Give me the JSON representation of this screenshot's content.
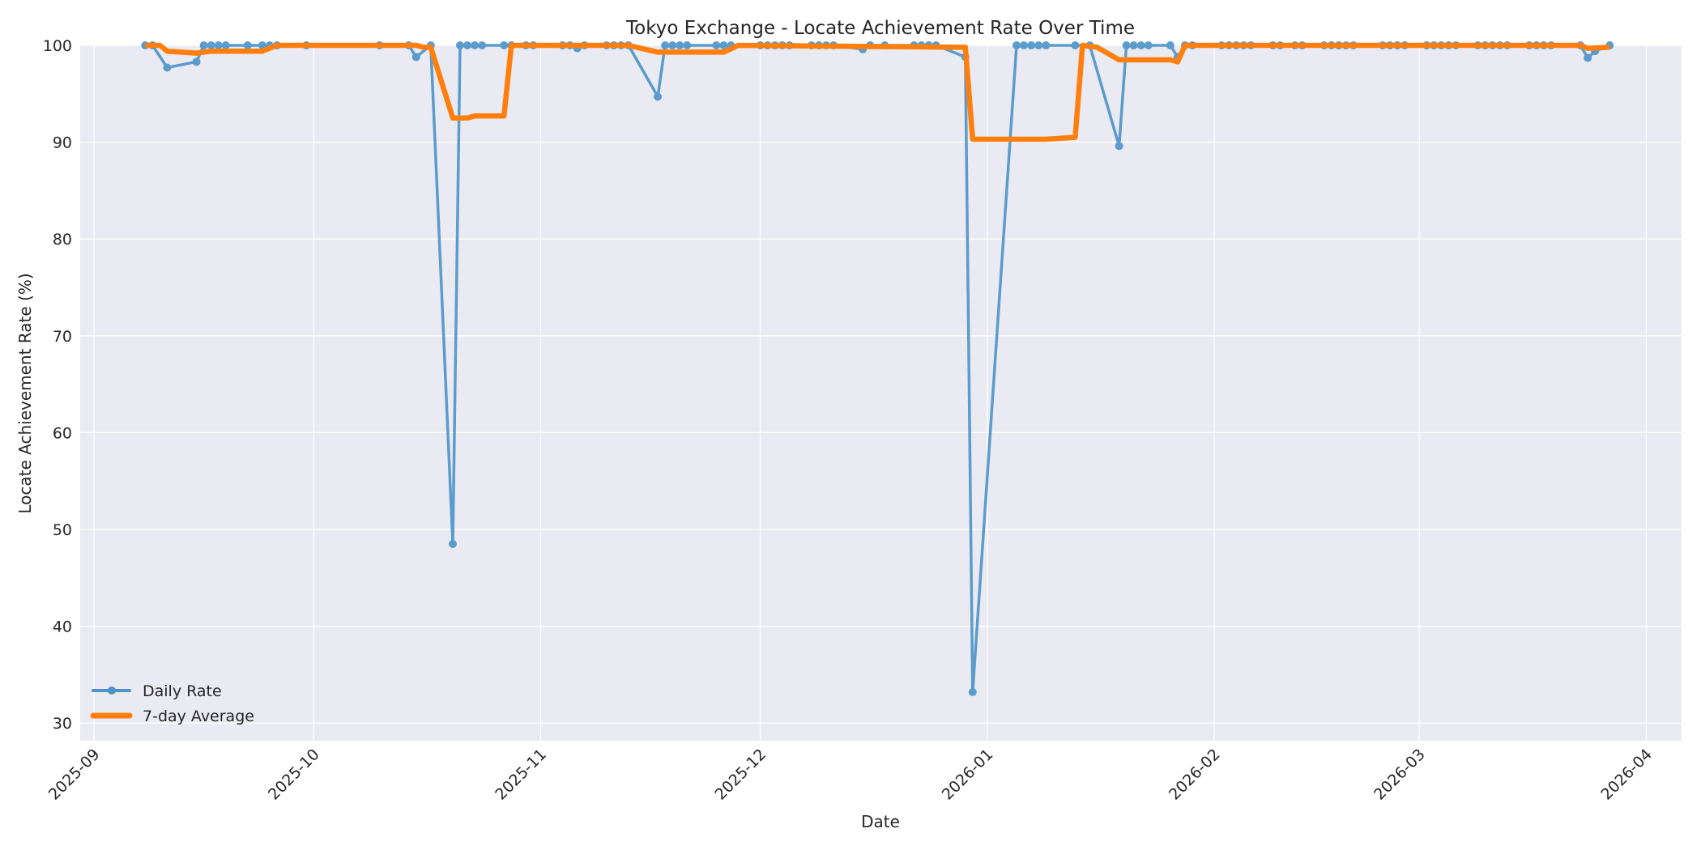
{
  "chart_data": {
    "type": "line",
    "title": "Tokyo Exchange - Locate Achievement Rate Over Time",
    "xlabel": "Date",
    "ylabel": "Locate Achievement Rate (%)",
    "ylim": [
      28.1,
      100
    ],
    "xlim": [
      "2025-08-29",
      "2026-04-05"
    ],
    "grid": true,
    "legend_position": "lower left",
    "x_ticks": [
      "2025-09",
      "2025-10",
      "2025-11",
      "2025-12",
      "2026-01",
      "2026-02",
      "2026-03",
      "2026-04"
    ],
    "y_ticks": [
      30,
      40,
      50,
      60,
      70,
      80,
      90,
      100
    ],
    "series": [
      {
        "name": "Daily Rate",
        "color": "#4c93c8",
        "style": "line+markers",
        "points": [
          [
            "2025-09-08",
            100
          ],
          [
            "2025-09-09",
            100
          ],
          [
            "2025-09-11",
            97.7
          ],
          [
            "2025-09-15",
            98.3
          ],
          [
            "2025-09-16",
            100
          ],
          [
            "2025-09-17",
            100
          ],
          [
            "2025-09-18",
            100
          ],
          [
            "2025-09-19",
            100
          ],
          [
            "2025-09-22",
            100
          ],
          [
            "2025-09-24",
            100
          ],
          [
            "2025-09-25",
            100
          ],
          [
            "2025-09-26",
            100
          ],
          [
            "2025-09-30",
            100
          ],
          [
            "2025-10-10",
            100
          ],
          [
            "2025-10-14",
            100
          ],
          [
            "2025-10-15",
            98.8
          ],
          [
            "2025-10-17",
            100
          ],
          [
            "2025-10-20",
            48.5
          ],
          [
            "2025-10-21",
            100
          ],
          [
            "2025-10-22",
            100
          ],
          [
            "2025-10-23",
            100
          ],
          [
            "2025-10-24",
            100
          ],
          [
            "2025-10-27",
            100
          ],
          [
            "2025-10-28",
            100
          ],
          [
            "2025-10-30",
            100
          ],
          [
            "2025-10-31",
            100
          ],
          [
            "2025-11-04",
            100
          ],
          [
            "2025-11-05",
            100
          ],
          [
            "2025-11-06",
            99.7
          ],
          [
            "2025-11-07",
            100
          ],
          [
            "2025-11-10",
            100
          ],
          [
            "2025-11-11",
            100
          ],
          [
            "2025-11-12",
            100
          ],
          [
            "2025-11-13",
            100
          ],
          [
            "2025-11-17",
            94.7
          ],
          [
            "2025-11-18",
            100
          ],
          [
            "2025-11-19",
            100
          ],
          [
            "2025-11-20",
            100
          ],
          [
            "2025-11-21",
            100
          ],
          [
            "2025-11-25",
            100
          ],
          [
            "2025-11-26",
            100
          ],
          [
            "2025-11-27",
            100
          ],
          [
            "2025-12-01",
            100
          ],
          [
            "2025-12-02",
            100
          ],
          [
            "2025-12-03",
            100
          ],
          [
            "2025-12-04",
            100
          ],
          [
            "2025-12-05",
            100
          ],
          [
            "2025-12-08",
            100
          ],
          [
            "2025-12-09",
            100
          ],
          [
            "2025-12-10",
            100
          ],
          [
            "2025-12-11",
            100
          ],
          [
            "2025-12-15",
            99.6
          ],
          [
            "2025-12-16",
            100
          ],
          [
            "2025-12-18",
            100
          ],
          [
            "2025-12-22",
            100
          ],
          [
            "2025-12-23",
            100
          ],
          [
            "2025-12-24",
            100
          ],
          [
            "2025-12-25",
            100
          ],
          [
            "2025-12-29",
            98.8
          ],
          [
            "2025-12-30",
            33.2
          ],
          [
            "2026-01-05",
            100
          ],
          [
            "2026-01-06",
            100
          ],
          [
            "2026-01-07",
            100
          ],
          [
            "2026-01-08",
            100
          ],
          [
            "2026-01-09",
            100
          ],
          [
            "2026-01-13",
            100
          ],
          [
            "2026-01-15",
            100
          ],
          [
            "2026-01-19",
            89.6
          ],
          [
            "2026-01-20",
            100
          ],
          [
            "2026-01-21",
            100
          ],
          [
            "2026-01-22",
            100
          ],
          [
            "2026-01-23",
            100
          ],
          [
            "2026-01-26",
            100
          ],
          [
            "2026-01-27",
            98.8
          ],
          [
            "2026-01-28",
            100
          ],
          [
            "2026-01-29",
            100
          ],
          [
            "2026-02-02",
            100
          ],
          [
            "2026-02-03",
            100
          ],
          [
            "2026-02-04",
            100
          ],
          [
            "2026-02-05",
            100
          ],
          [
            "2026-02-06",
            100
          ],
          [
            "2026-02-09",
            100
          ],
          [
            "2026-02-10",
            100
          ],
          [
            "2026-02-12",
            100
          ],
          [
            "2026-02-13",
            100
          ],
          [
            "2026-02-16",
            100
          ],
          [
            "2026-02-17",
            100
          ],
          [
            "2026-02-18",
            100
          ],
          [
            "2026-02-19",
            100
          ],
          [
            "2026-02-20",
            100
          ],
          [
            "2026-02-24",
            100
          ],
          [
            "2026-02-25",
            100
          ],
          [
            "2026-02-26",
            100
          ],
          [
            "2026-02-27",
            100
          ],
          [
            "2026-03-02",
            100
          ],
          [
            "2026-03-03",
            100
          ],
          [
            "2026-03-04",
            100
          ],
          [
            "2026-03-05",
            100
          ],
          [
            "2026-03-06",
            100
          ],
          [
            "2026-03-09",
            100
          ],
          [
            "2026-03-10",
            100
          ],
          [
            "2026-03-11",
            100
          ],
          [
            "2026-03-12",
            100
          ],
          [
            "2026-03-13",
            100
          ],
          [
            "2026-03-16",
            100
          ],
          [
            "2026-03-17",
            100
          ],
          [
            "2026-03-18",
            100
          ],
          [
            "2026-03-19",
            100
          ],
          [
            "2026-03-23",
            100
          ],
          [
            "2026-03-24",
            98.7
          ],
          [
            "2026-03-25",
            99.4
          ],
          [
            "2026-03-27",
            100
          ]
        ]
      },
      {
        "name": "7-day Average",
        "color": "#ff7f0e",
        "style": "line",
        "points": [
          [
            "2025-09-08",
            100
          ],
          [
            "2025-09-10",
            100
          ],
          [
            "2025-09-11",
            99.4
          ],
          [
            "2025-09-15",
            99.2
          ],
          [
            "2025-09-17",
            99.4
          ],
          [
            "2025-09-24",
            99.4
          ],
          [
            "2025-09-26",
            100
          ],
          [
            "2025-10-15",
            100
          ],
          [
            "2025-10-16",
            99.8
          ],
          [
            "2025-10-17",
            99.8
          ],
          [
            "2025-10-20",
            92.5
          ],
          [
            "2025-10-22",
            92.5
          ],
          [
            "2025-10-23",
            92.7
          ],
          [
            "2025-10-27",
            92.7
          ],
          [
            "2025-10-28",
            100
          ],
          [
            "2025-11-13",
            100
          ],
          [
            "2025-11-17",
            99.3
          ],
          [
            "2025-11-26",
            99.3
          ],
          [
            "2025-11-28",
            100
          ],
          [
            "2025-12-28",
            99.8
          ],
          [
            "2025-12-29",
            99.8
          ],
          [
            "2025-12-30",
            90.3
          ],
          [
            "2026-01-09",
            90.3
          ],
          [
            "2026-01-13",
            90.5
          ],
          [
            "2026-01-14",
            100
          ],
          [
            "2026-01-16",
            99.8
          ],
          [
            "2026-01-19",
            98.5
          ],
          [
            "2026-01-26",
            98.5
          ],
          [
            "2026-01-27",
            98.3
          ],
          [
            "2026-01-28",
            100
          ],
          [
            "2026-03-23",
            100
          ],
          [
            "2026-03-24",
            99.7
          ],
          [
            "2026-03-27",
            99.8
          ]
        ]
      }
    ]
  }
}
